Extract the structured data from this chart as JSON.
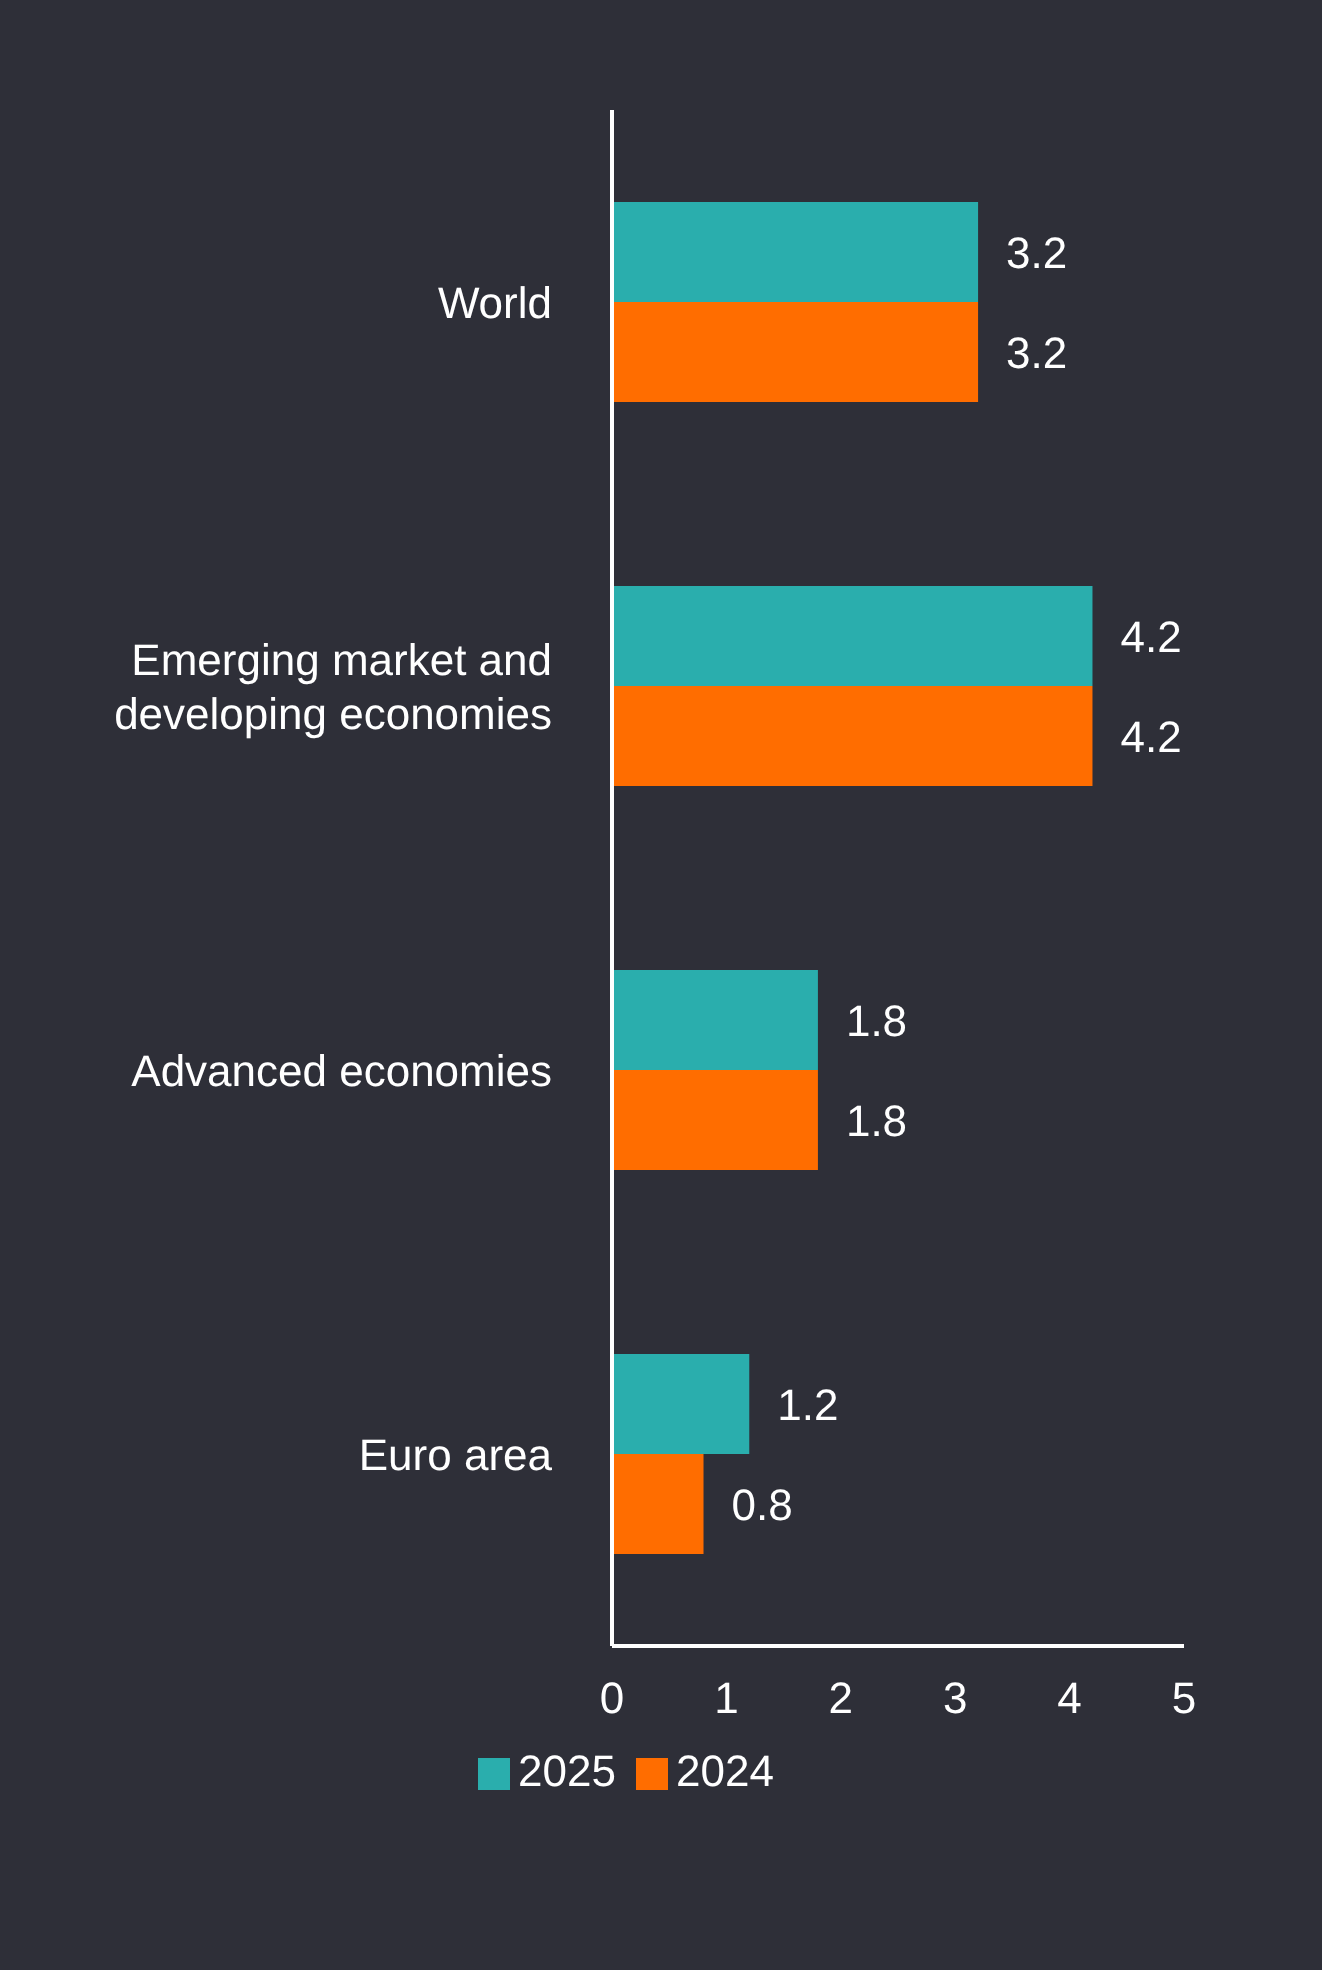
{
  "chart_data": {
    "type": "bar",
    "orientation": "horizontal",
    "categories": [
      "World",
      "Emerging market and developing economies",
      "Advanced economies",
      "Euro area"
    ],
    "series": [
      {
        "name": "2025",
        "color": "#2aaead",
        "values": [
          3.2,
          4.2,
          1.8,
          1.2
        ]
      },
      {
        "name": "2024",
        "color": "#ff6d00",
        "values": [
          3.2,
          4.2,
          1.8,
          0.8
        ]
      }
    ],
    "xlim": [
      0,
      5
    ],
    "xticks": [
      0,
      1,
      2,
      3,
      4,
      5
    ],
    "data_labels": true,
    "legend": "bottom",
    "grid": false
  }
}
